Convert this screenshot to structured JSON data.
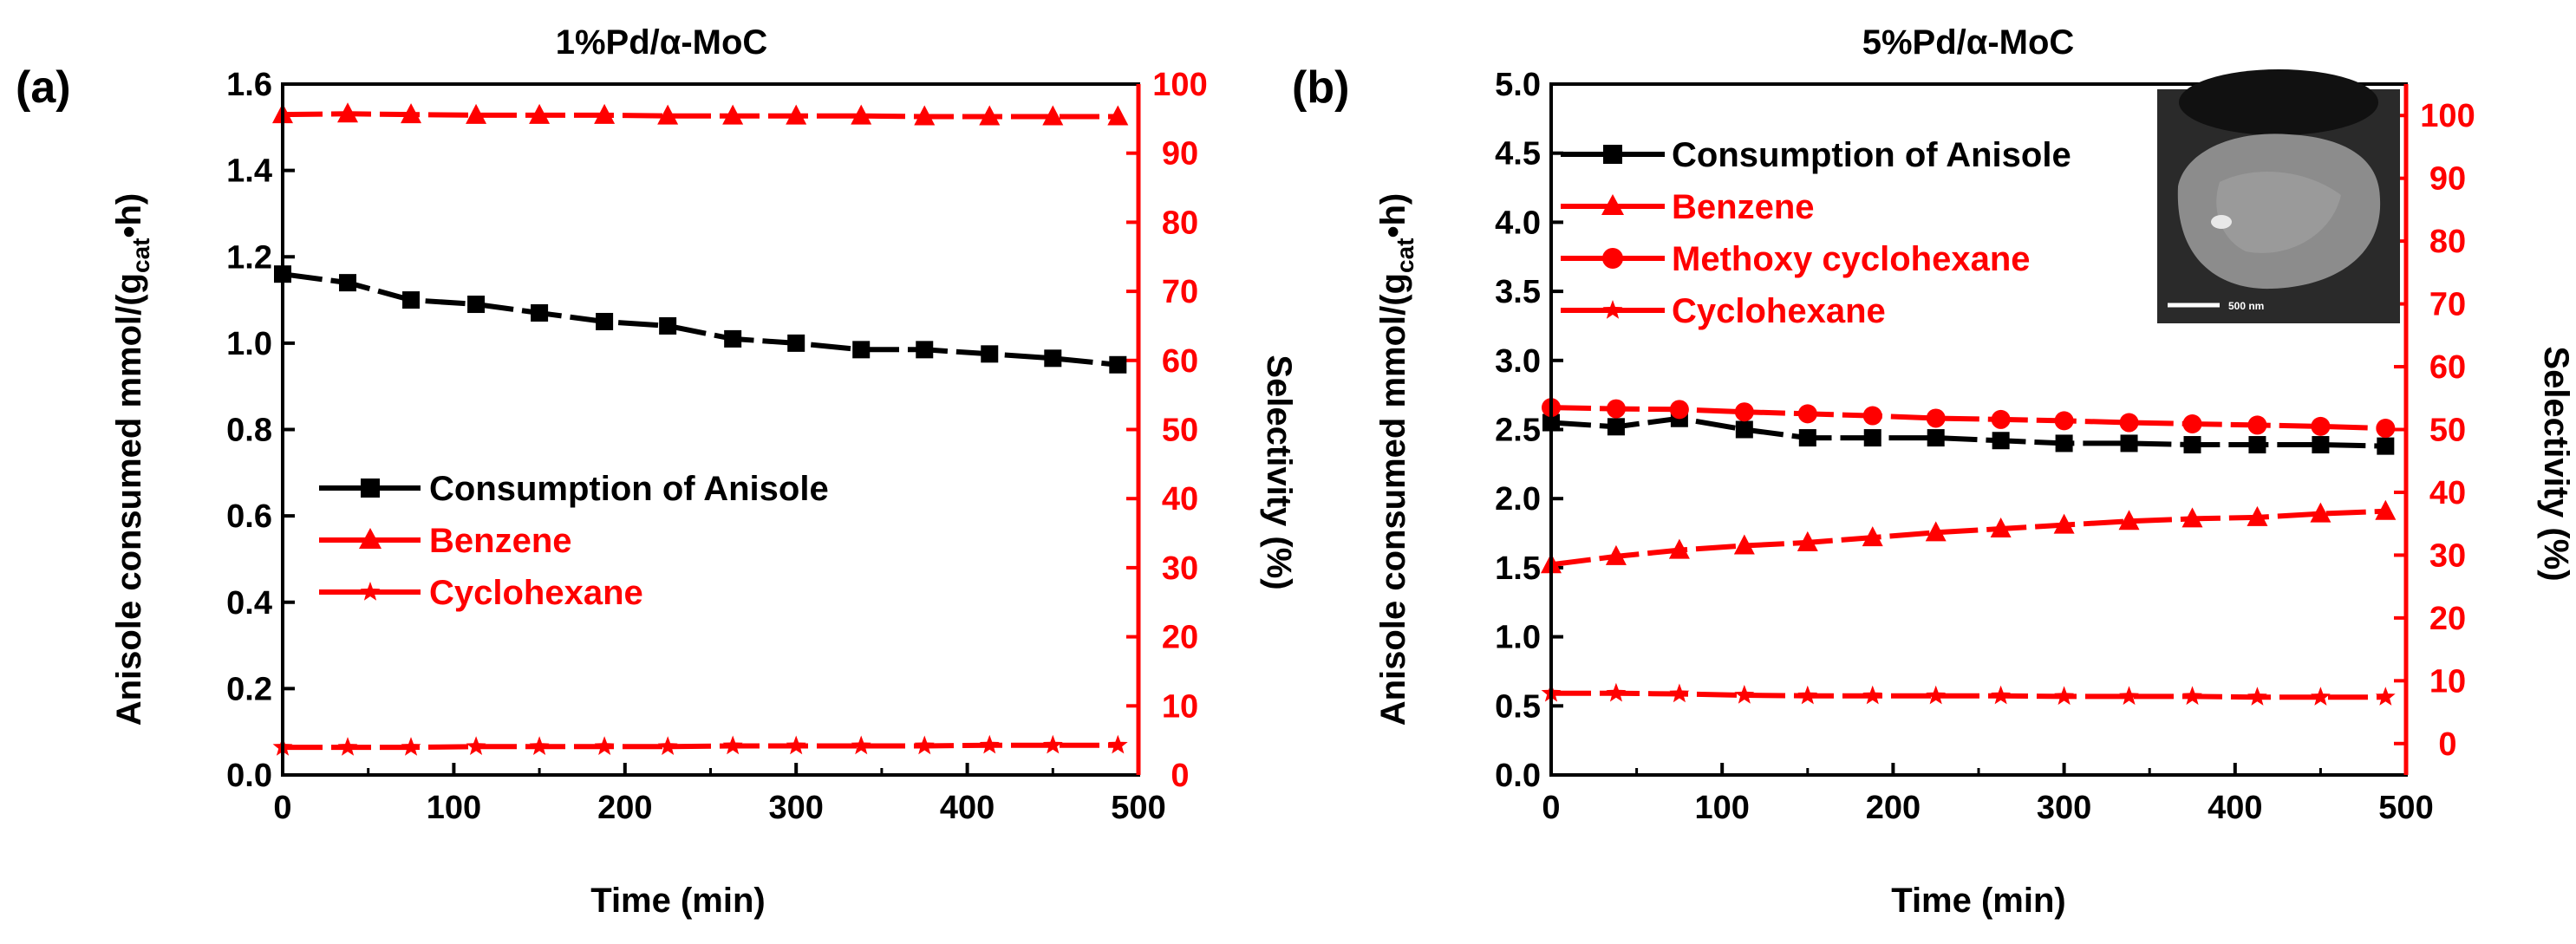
{
  "colors": {
    "black": "#000000",
    "red": "#ff0000",
    "white": "#ffffff"
  },
  "chart_data": [
    {
      "type": "line",
      "panel_label": "(a)",
      "title": "1%Pd/α-MoC",
      "xlabel": "Time (min)",
      "ylabel_left": "Anisole consumed mmol/(g",
      "ylabel_left_sub": "cat",
      "ylabel_left_end": "•h)",
      "ylabel_right": "Selectivity (%)",
      "xlim": [
        0,
        500
      ],
      "ylim_left": [
        0,
        1.6
      ],
      "ylim_right": [
        0,
        100
      ],
      "x_ticks": [
        0,
        100,
        200,
        300,
        400,
        500
      ],
      "x_tick_labels": [
        "0",
        "100",
        "200",
        "300",
        "400",
        "500"
      ],
      "y_ticks_left": [
        0,
        0.2,
        0.4,
        0.6,
        0.8,
        1.0,
        1.2,
        1.4,
        1.6
      ],
      "y_tick_labels_left": [
        "0.0",
        "0.2",
        "0.4",
        "0.6",
        "0.8",
        "1.0",
        "1.2",
        "1.4",
        "1.6"
      ],
      "y_ticks_right": [
        0,
        10,
        20,
        30,
        40,
        50,
        60,
        70,
        80,
        90,
        100
      ],
      "y_tick_labels_right": [
        "0",
        "10",
        "20",
        "30",
        "40",
        "50",
        "60",
        "70",
        "80",
        "90",
        "100"
      ],
      "legend_position": "middle-left",
      "series": [
        {
          "name": "Consumption of Anisole",
          "axis": "left",
          "marker": "square",
          "color": "#000000",
          "x": [
            0,
            38,
            75,
            113,
            150,
            188,
            225,
            263,
            300,
            338,
            375,
            413,
            450,
            488
          ],
          "y": [
            1.16,
            1.14,
            1.1,
            1.09,
            1.07,
            1.05,
            1.04,
            1.01,
            1.0,
            0.985,
            0.985,
            0.975,
            0.965,
            0.95
          ]
        },
        {
          "name": "Benzene",
          "axis": "right",
          "marker": "triangle",
          "color": "#ff0000",
          "x": [
            0,
            38,
            75,
            113,
            150,
            188,
            225,
            263,
            300,
            338,
            375,
            413,
            450,
            488
          ],
          "y": [
            95.6,
            95.7,
            95.6,
            95.5,
            95.5,
            95.5,
            95.4,
            95.4,
            95.4,
            95.4,
            95.3,
            95.3,
            95.3,
            95.3
          ]
        },
        {
          "name": "Cyclohexane",
          "axis": "right",
          "marker": "star",
          "color": "#ff0000",
          "x": [
            0,
            38,
            75,
            113,
            150,
            188,
            225,
            263,
            300,
            338,
            375,
            413,
            450,
            488
          ],
          "y": [
            4.0,
            4.0,
            4.0,
            4.1,
            4.1,
            4.1,
            4.1,
            4.2,
            4.2,
            4.2,
            4.2,
            4.3,
            4.3,
            4.3
          ]
        }
      ]
    },
    {
      "type": "line",
      "panel_label": "(b)",
      "title": "5%Pd/α-MoC",
      "xlabel": "Time (min)",
      "ylabel_left": "Anisole consumed mmol/(g",
      "ylabel_left_sub": "cat",
      "ylabel_left_end": "•h)",
      "ylabel_right": "Selectivity (%)",
      "inset_scale_label": "500 nm",
      "xlim": [
        0,
        500
      ],
      "ylim_left": [
        0,
        5.0
      ],
      "ylim_right": [
        -5,
        105
      ],
      "x_ticks": [
        0,
        100,
        200,
        300,
        400,
        500
      ],
      "x_tick_labels": [
        "0",
        "100",
        "200",
        "300",
        "400",
        "500"
      ],
      "y_ticks_left": [
        0,
        0.5,
        1.0,
        1.5,
        2.0,
        2.5,
        3.0,
        3.5,
        4.0,
        4.5,
        5.0
      ],
      "y_tick_labels_left": [
        "0.0",
        "0.5",
        "1.0",
        "1.5",
        "2.0",
        "2.5",
        "3.0",
        "3.5",
        "4.0",
        "4.5",
        "5.0"
      ],
      "y_ticks_right": [
        0,
        10,
        20,
        30,
        40,
        50,
        60,
        70,
        80,
        90,
        100
      ],
      "y_tick_labels_right": [
        "0",
        "10",
        "20",
        "30",
        "40",
        "50",
        "60",
        "70",
        "80",
        "90",
        "100"
      ],
      "legend_position": "top-left",
      "series": [
        {
          "name": "Consumption of Anisole",
          "axis": "left",
          "marker": "square",
          "color": "#000000",
          "x": [
            0,
            38,
            75,
            113,
            150,
            188,
            225,
            263,
            300,
            338,
            375,
            413,
            450,
            488
          ],
          "y": [
            2.55,
            2.52,
            2.58,
            2.5,
            2.44,
            2.44,
            2.44,
            2.42,
            2.4,
            2.4,
            2.39,
            2.39,
            2.39,
            2.38
          ]
        },
        {
          "name": "Benzene",
          "axis": "right",
          "marker": "triangle",
          "color": "#ff0000",
          "x": [
            0,
            38,
            75,
            113,
            150,
            188,
            225,
            263,
            300,
            338,
            375,
            413,
            450,
            488
          ],
          "y": [
            28.5,
            29.8,
            30.8,
            31.5,
            32.0,
            32.8,
            33.6,
            34.2,
            34.8,
            35.4,
            35.8,
            36.0,
            36.6,
            37.0
          ]
        },
        {
          "name": "Methoxy cyclohexane",
          "axis": "right",
          "marker": "circle",
          "color": "#ff0000",
          "x": [
            0,
            38,
            75,
            113,
            150,
            188,
            225,
            263,
            300,
            338,
            375,
            413,
            450,
            488
          ],
          "y": [
            53.5,
            53.3,
            53.2,
            52.8,
            52.5,
            52.2,
            51.8,
            51.6,
            51.4,
            51.1,
            50.9,
            50.7,
            50.5,
            50.2
          ]
        },
        {
          "name": "Cyclohexane",
          "axis": "right",
          "marker": "star",
          "color": "#ff0000",
          "x": [
            0,
            38,
            75,
            113,
            150,
            188,
            225,
            263,
            300,
            338,
            375,
            413,
            450,
            488
          ],
          "y": [
            8.0,
            8.0,
            7.9,
            7.7,
            7.6,
            7.6,
            7.6,
            7.6,
            7.5,
            7.5,
            7.5,
            7.4,
            7.4,
            7.4
          ]
        }
      ]
    }
  ]
}
